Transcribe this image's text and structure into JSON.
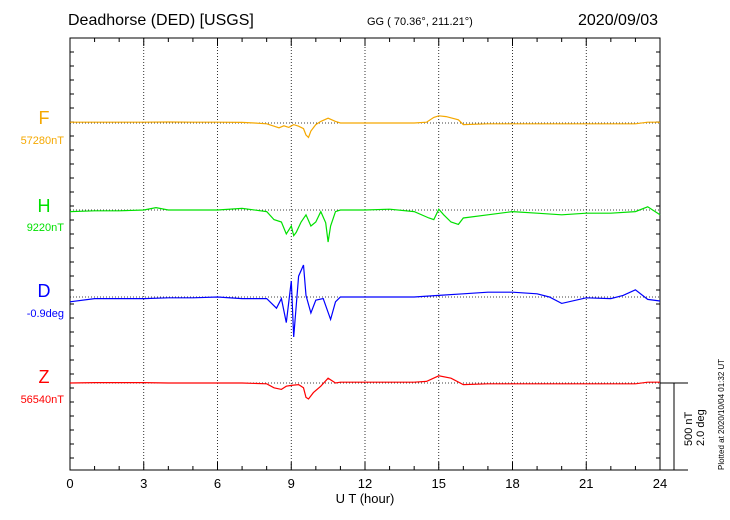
{
  "header": {
    "title": "Deadhorse (DED)  [USGS]",
    "coords": "GG ( 70.36°, 211.21°)",
    "date": "2020/09/03"
  },
  "chart_data": {
    "type": "line",
    "xlabel": "U T (hour)",
    "xlim": [
      0,
      24
    ],
    "xticks": [
      "0",
      "3",
      "6",
      "9",
      "12",
      "15",
      "18",
      "21",
      "24"
    ],
    "grid": "vertical dotted every 3 h",
    "scale_labels": [
      "500 nT",
      "2.0 deg"
    ],
    "plotted_note": "Plotted at 2020/10/04 01:32 UT",
    "series": [
      {
        "name": "F",
        "baseline": "57280nT",
        "color": "#f5a800",
        "x": [
          0,
          1,
          2,
          3,
          4,
          5,
          6,
          7,
          7.5,
          8,
          8.3,
          8.5,
          8.7,
          8.9,
          9.1,
          9.3,
          9.5,
          9.6,
          9.7,
          9.8,
          10,
          10.2,
          10.5,
          10.8,
          11,
          12,
          13,
          14,
          14.5,
          14.8,
          15,
          15.3,
          15.8,
          16,
          17,
          18,
          19,
          20,
          21,
          22,
          23,
          23.5,
          24
        ],
        "values": [
          10,
          10,
          10,
          10,
          12,
          10,
          10,
          8,
          0,
          -10,
          -40,
          -60,
          -35,
          -55,
          -20,
          -40,
          -70,
          -150,
          -180,
          -100,
          -20,
          20,
          60,
          20,
          0,
          0,
          0,
          0,
          10,
          70,
          90,
          80,
          40,
          -20,
          -10,
          -10,
          -10,
          -10,
          -10,
          -10,
          -10,
          10,
          10
        ]
      },
      {
        "name": "H",
        "baseline": "9220nT",
        "color": "#00e000",
        "x": [
          0,
          1,
          2,
          3,
          3.5,
          4,
          5,
          6,
          7,
          8,
          8.3,
          8.6,
          8.8,
          9,
          9.1,
          9.2,
          9.4,
          9.6,
          9.8,
          10,
          10.2,
          10.4,
          10.5,
          10.6,
          10.8,
          11,
          12,
          13,
          14,
          14.6,
          14.8,
          15,
          15.2,
          15.5,
          15.8,
          16,
          17,
          18,
          19,
          20,
          21,
          22,
          23,
          23.5,
          24
        ],
        "values": [
          -20,
          -10,
          -10,
          0,
          30,
          0,
          0,
          0,
          20,
          -20,
          -120,
          -150,
          -300,
          -200,
          -320,
          -280,
          -150,
          -60,
          -200,
          -150,
          -20,
          -160,
          -400,
          -200,
          -20,
          0,
          0,
          10,
          -20,
          -100,
          -120,
          10,
          -60,
          -150,
          -180,
          -100,
          -60,
          -20,
          -40,
          -60,
          -40,
          -40,
          -20,
          40,
          -60
        ]
      },
      {
        "name": "D",
        "baseline": "-0.9deg",
        "color": "#0000ff",
        "x": [
          0,
          1,
          2,
          3,
          4,
          5,
          6,
          7,
          8,
          8.4,
          8.6,
          8.8,
          9,
          9.1,
          9.3,
          9.5,
          9.6,
          9.8,
          10,
          10.3,
          10.6,
          10.8,
          11,
          12,
          13,
          14,
          15,
          16,
          17,
          18,
          19,
          19.5,
          20,
          21,
          22,
          22.5,
          23,
          23.5,
          24
        ],
        "values": [
          -60,
          -20,
          -20,
          -20,
          -10,
          -10,
          0,
          -20,
          -20,
          -140,
          -20,
          -320,
          200,
          -500,
          260,
          400,
          20,
          -200,
          -40,
          -20,
          -280,
          -60,
          0,
          0,
          0,
          0,
          20,
          40,
          60,
          60,
          40,
          0,
          -80,
          -10,
          -20,
          20,
          90,
          -30,
          -50
        ]
      },
      {
        "name": "Z",
        "baseline": "56540nT",
        "color": "#ff0000",
        "x": [
          0,
          1,
          2,
          3,
          4,
          5,
          6,
          7,
          8,
          8.3,
          8.6,
          8.8,
          9,
          9.3,
          9.5,
          9.6,
          9.7,
          9.9,
          10.2,
          10.5,
          10.8,
          11,
          12,
          13,
          14,
          14.5,
          15,
          15.5,
          16,
          17,
          18,
          19,
          20,
          21,
          22,
          23,
          23.5,
          24
        ],
        "values": [
          0,
          5,
          5,
          5,
          0,
          0,
          0,
          0,
          -10,
          -60,
          -80,
          -40,
          -30,
          -20,
          -60,
          -180,
          -200,
          -120,
          -40,
          60,
          0,
          10,
          10,
          10,
          10,
          20,
          90,
          60,
          -20,
          -10,
          -10,
          -10,
          -10,
          -10,
          -10,
          -10,
          10,
          10
        ]
      }
    ]
  }
}
